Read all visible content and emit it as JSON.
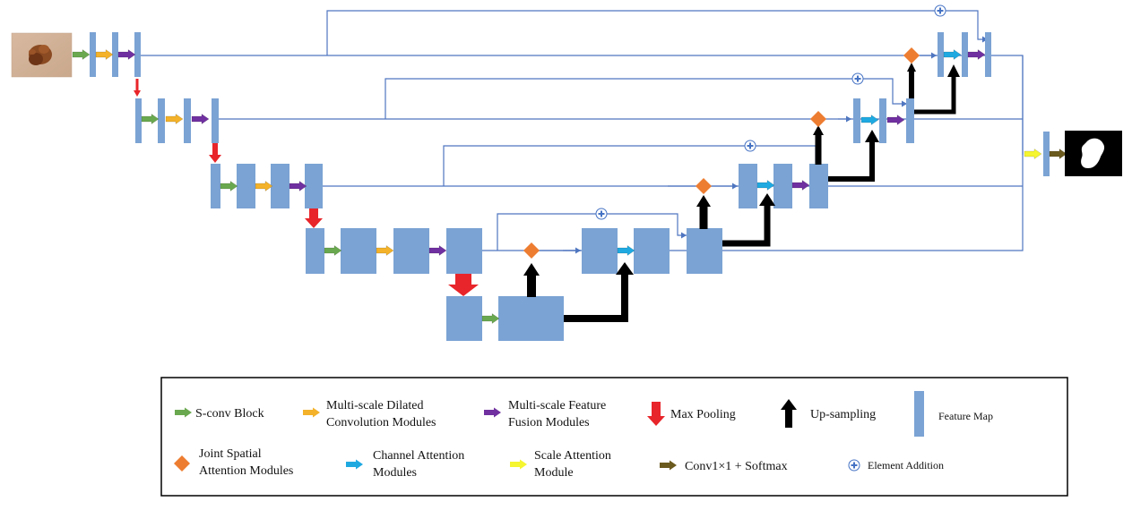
{
  "colors": {
    "feature_map": "#7ba3d4",
    "feature_map_edge": "#6a93c6",
    "connector": "#4f76c0",
    "sconv": "#6aa84f",
    "dilated": "#f3b229",
    "fusion": "#7030a0",
    "maxpool": "#e8252a",
    "upsample": "#000000",
    "joint_spatial": "#ed7d31",
    "channel_att": "#1fa9e1",
    "scale_att": "#f5f530",
    "conv_softmax": "#6b5a1e",
    "addition": "#4472c4"
  },
  "images": {
    "input_image": "skin-lesion-photo",
    "output_mask": "segmentation-mask"
  },
  "legend": {
    "sconv": "S-conv Block",
    "dilated_1": "Multi-scale Dilated",
    "dilated_2": "Convolution Modules",
    "fusion_1": "Multi-scale Feature",
    "fusion_2": "Fusion Modules",
    "maxpool": "Max Pooling",
    "upsample": "Up-sampling",
    "feature_map": "Feature Map",
    "joint_spatial_1": "Joint Spatial",
    "joint_spatial_2": "Attention Modules",
    "channel_att_1": "Channel Attention",
    "channel_att_2": "Modules",
    "scale_att_1": "Scale Attention",
    "scale_att_2": "Module",
    "conv_softmax": "Conv1×1 + Softmax",
    "addition": "Element Addition"
  }
}
